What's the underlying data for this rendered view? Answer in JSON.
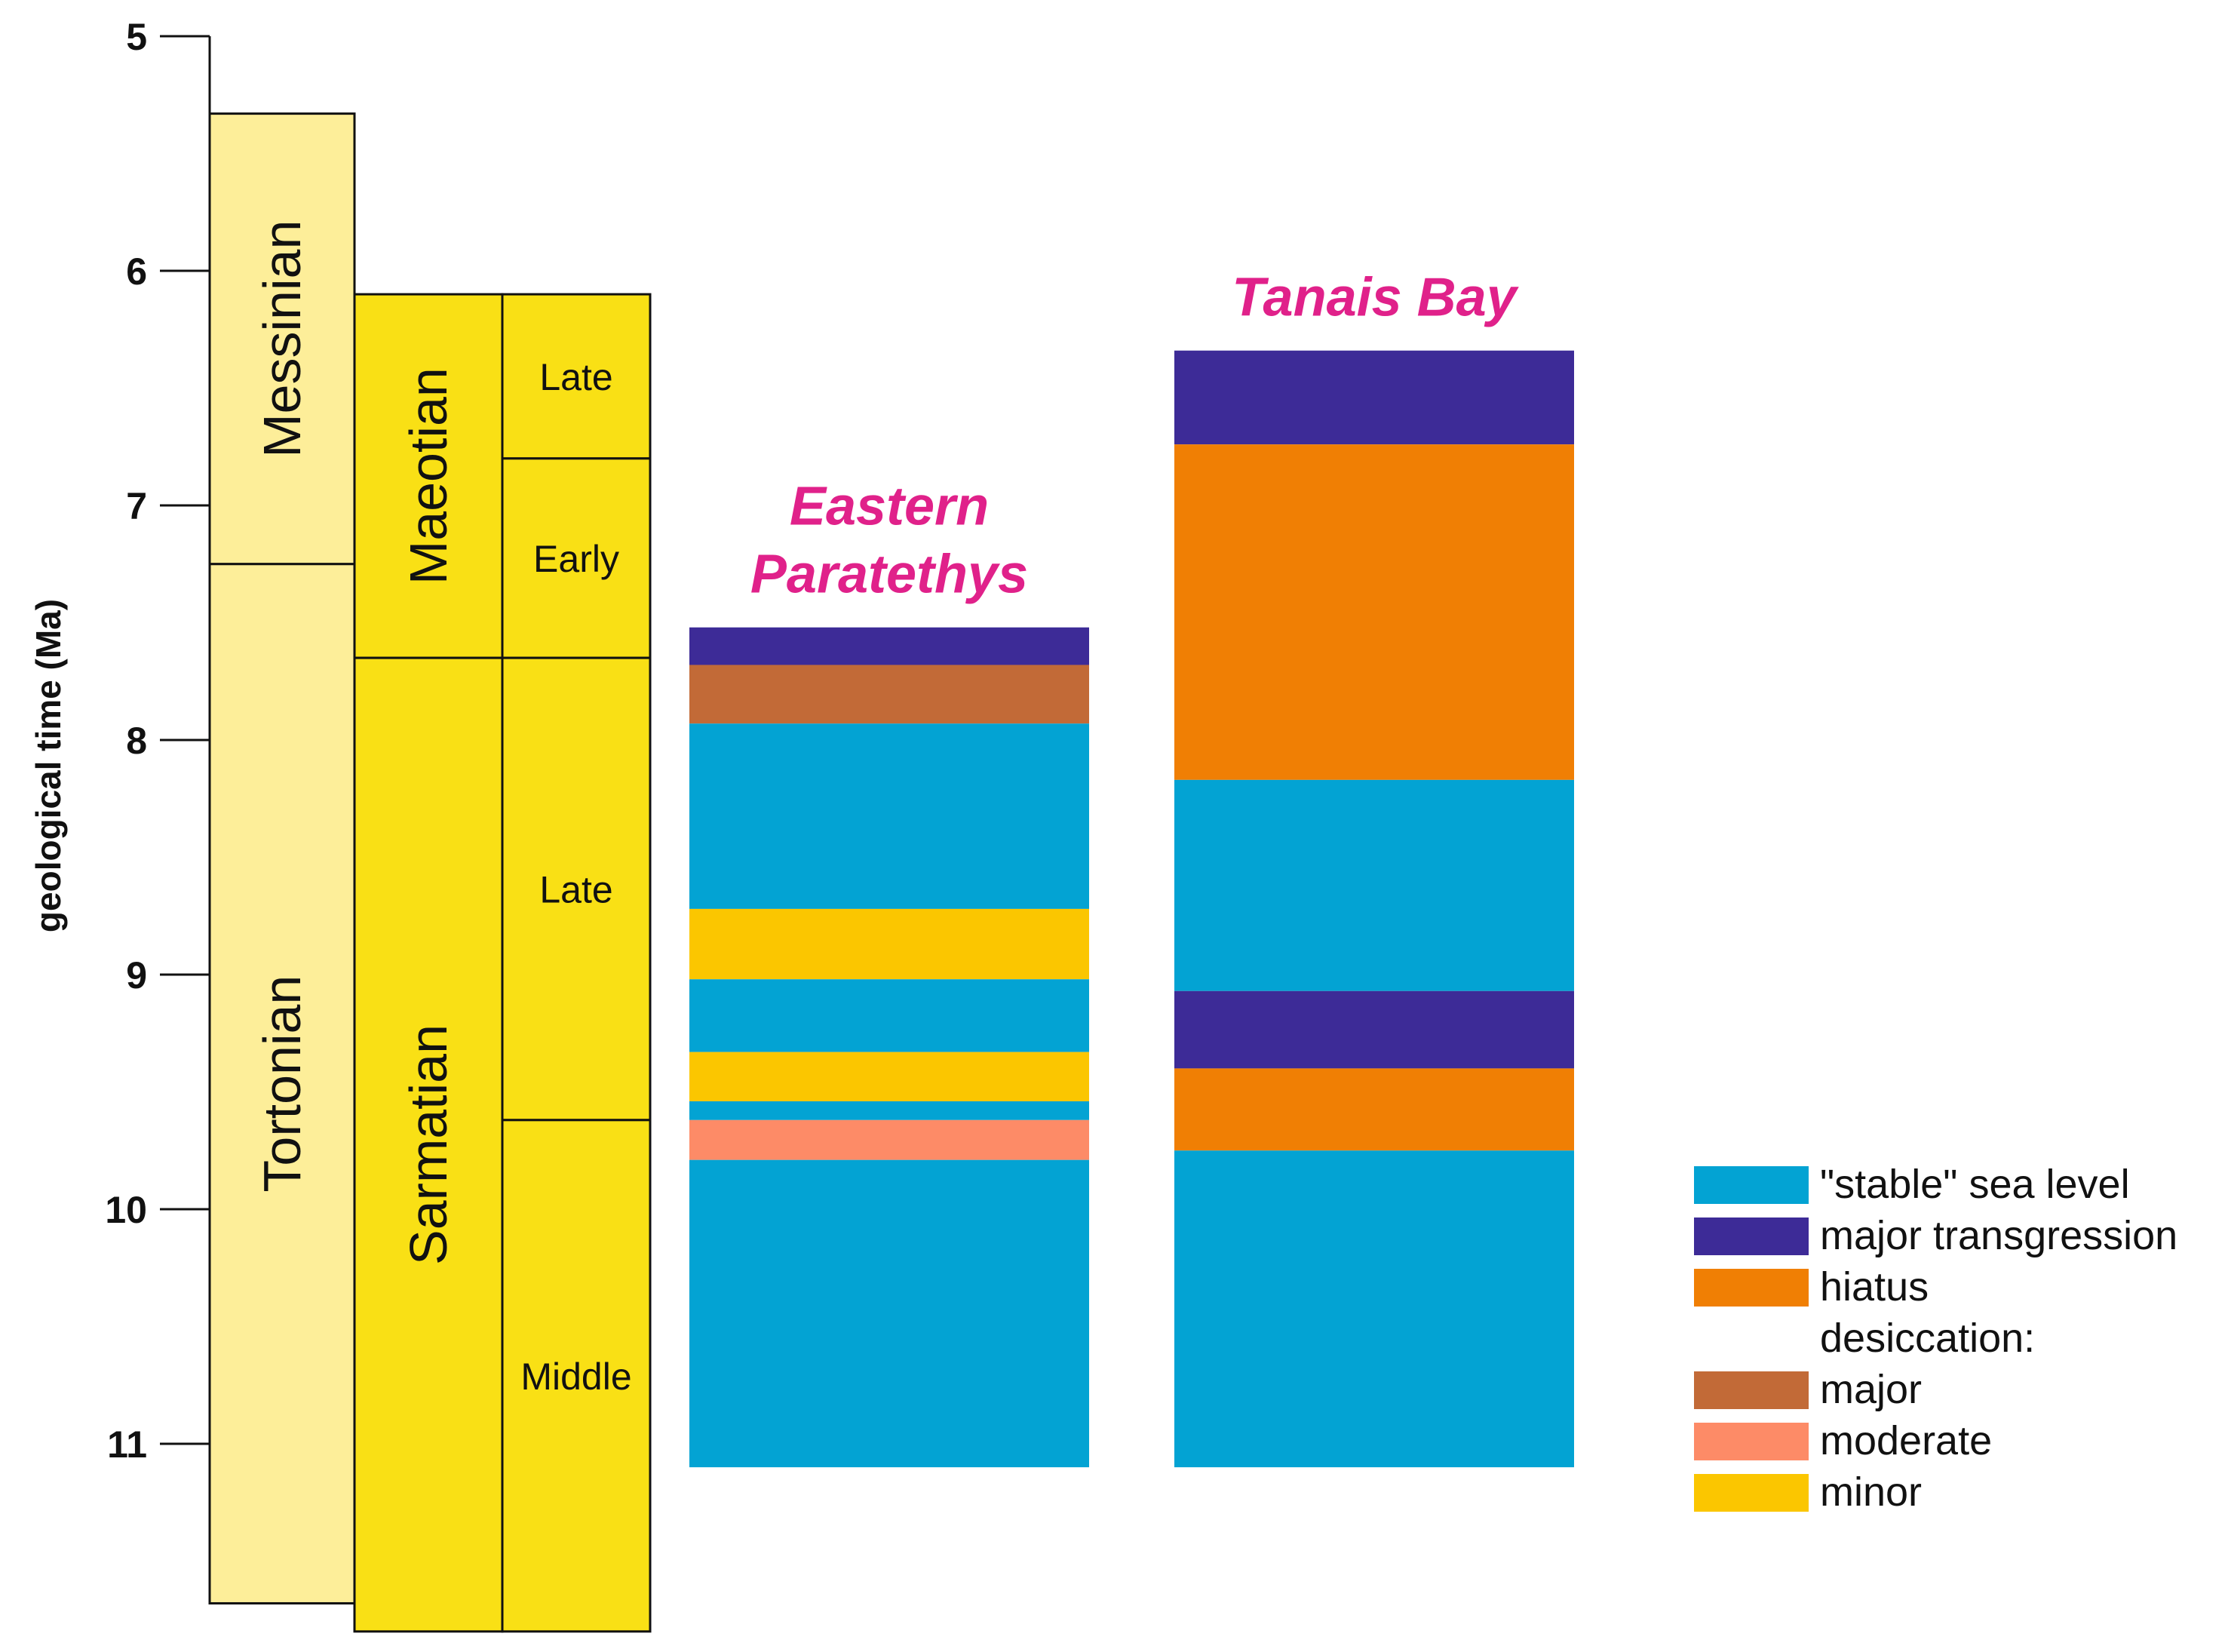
{
  "chart_data": {
    "type": "stratigraphic-column",
    "ylabel": "geological time (Ma)",
    "ylim": [
      5,
      11.7
    ],
    "yticks": [
      5,
      6,
      7,
      8,
      9,
      10,
      11
    ],
    "stage_columns": [
      {
        "name": "stages",
        "units": [
          {
            "label": "Messinian",
            "from": 5.33,
            "to": 7.25,
            "color": "#fdee99"
          },
          {
            "label": "Tortonian",
            "from": 7.25,
            "to": 11.68,
            "color": "#fdee99"
          }
        ]
      },
      {
        "name": "regional-stages",
        "units": [
          {
            "label": "Maeotian",
            "from": 6.1,
            "to": 7.65,
            "color": "#f9e015"
          },
          {
            "label": "Sarmatian",
            "from": 7.65,
            "to": 11.8,
            "color": "#f9e015"
          }
        ]
      },
      {
        "name": "substages",
        "units": [
          {
            "label": "Late",
            "from": 6.1,
            "to": 6.8,
            "color": "#f9e015"
          },
          {
            "label": "Early",
            "from": 6.8,
            "to": 7.65,
            "color": "#f9e015"
          },
          {
            "label": "Late",
            "from": 7.65,
            "to": 9.62,
            "color": "#f9e015"
          },
          {
            "label": "Middle",
            "from": 9.62,
            "to": 11.8,
            "color": "#f9e015"
          }
        ]
      }
    ],
    "legend": {
      "items": [
        {
          "key": "stable",
          "label": "\"stable\" sea level",
          "color": "#03a3d3"
        },
        {
          "key": "transgression",
          "label": "major transgression",
          "color": "#3d2b97"
        },
        {
          "key": "hiatus",
          "label": "hiatus",
          "color": "#f07f04"
        },
        {
          "key": "desiccation-header",
          "label": "desiccation:",
          "color": null
        },
        {
          "key": "major",
          "label": "major",
          "color": "#c26a37"
        },
        {
          "key": "moderate",
          "label": "moderate",
          "color": "#fd8b67"
        },
        {
          "key": "minor",
          "label": "minor",
          "color": "#fbc600"
        }
      ]
    },
    "series": [
      {
        "name": "Eastern Paratethys",
        "title_lines": [
          "Eastern",
          "Paratethys"
        ],
        "intervals": [
          {
            "from": 7.52,
            "to": 7.68,
            "category": "transgression"
          },
          {
            "from": 7.68,
            "to": 7.93,
            "category": "major"
          },
          {
            "from": 7.93,
            "to": 8.72,
            "category": "stable"
          },
          {
            "from": 8.72,
            "to": 9.02,
            "category": "minor"
          },
          {
            "from": 9.02,
            "to": 9.33,
            "category": "stable"
          },
          {
            "from": 9.33,
            "to": 9.54,
            "category": "minor"
          },
          {
            "from": 9.54,
            "to": 9.62,
            "category": "stable"
          },
          {
            "from": 9.62,
            "to": 9.79,
            "category": "moderate"
          },
          {
            "from": 9.79,
            "to": 11.1,
            "category": "stable"
          }
        ]
      },
      {
        "name": "Tanais Bay",
        "title_lines": [
          "Tanais Bay"
        ],
        "intervals": [
          {
            "from": 6.34,
            "to": 6.74,
            "category": "transgression"
          },
          {
            "from": 6.74,
            "to": 8.17,
            "category": "hiatus"
          },
          {
            "from": 8.17,
            "to": 9.07,
            "category": "stable"
          },
          {
            "from": 9.07,
            "to": 9.4,
            "category": "transgression"
          },
          {
            "from": 9.4,
            "to": 9.75,
            "category": "hiatus"
          },
          {
            "from": 9.75,
            "to": 11.1,
            "category": "stable"
          }
        ]
      }
    ]
  }
}
